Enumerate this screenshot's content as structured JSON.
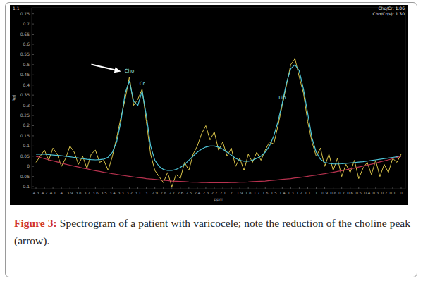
{
  "chart_data": {
    "type": "line",
    "corner_label": "1.1",
    "ratios": [
      "Cho/Cr: 1.06",
      "Cho/Cr(s): 1.30"
    ],
    "x_label": "ppm",
    "y_label": "Rel",
    "caption_label": "Figure 3:",
    "caption": "Spectrogram of a patient with varicocele; note the reduction of the choline peak (arrow).",
    "annotations": [
      {
        "text": "Cho",
        "x": 3.2,
        "y": 0.46
      },
      {
        "text": "Cr",
        "x": 3.05,
        "y": 0.4
      },
      {
        "text": "Lip",
        "x": 1.4,
        "y": 0.33
      }
    ],
    "xlim": [
      4.35,
      -0.05
    ],
    "ylim": [
      -0.11,
      0.78
    ],
    "xticks": [
      4.3,
      4.2,
      4.1,
      4,
      3.9,
      3.8,
      3.7,
      3.6,
      3.5,
      3.4,
      3.3,
      3.2,
      3.1,
      3,
      2.9,
      2.8,
      2.7,
      2.6,
      2.5,
      2.4,
      2.3,
      2.2,
      2.1,
      2,
      1.9,
      1.8,
      1.7,
      1.6,
      1.5,
      1.4,
      1.3,
      1.2,
      1.1,
      1,
      0.9,
      0.8,
      0.7,
      0.6,
      0.5,
      0.4,
      0.3,
      0.2,
      0.1,
      0
    ],
    "yticks": [
      0.75,
      0.7,
      0.65,
      0.6,
      0.55,
      0.5,
      0.45,
      0.4,
      0.35,
      0.3,
      0.25,
      0.2,
      0.15,
      0.1,
      0.05,
      0,
      -0.05,
      -0.1
    ],
    "grid": false,
    "x": [
      4.3,
      4.25,
      4.2,
      4.15,
      4.1,
      4.05,
      4.0,
      3.95,
      3.9,
      3.85,
      3.8,
      3.75,
      3.7,
      3.65,
      3.6,
      3.55,
      3.5,
      3.45,
      3.4,
      3.35,
      3.3,
      3.25,
      3.2,
      3.15,
      3.1,
      3.05,
      3.0,
      2.95,
      2.9,
      2.85,
      2.8,
      2.75,
      2.7,
      2.65,
      2.6,
      2.55,
      2.5,
      2.45,
      2.4,
      2.35,
      2.3,
      2.25,
      2.2,
      2.15,
      2.1,
      2.05,
      2.0,
      1.95,
      1.9,
      1.85,
      1.8,
      1.75,
      1.7,
      1.65,
      1.6,
      1.55,
      1.5,
      1.45,
      1.4,
      1.35,
      1.3,
      1.25,
      1.2,
      1.15,
      1.1,
      1.05,
      1.0,
      0.95,
      0.9,
      0.85,
      0.8,
      0.75,
      0.7,
      0.65,
      0.6,
      0.55,
      0.5,
      0.45,
      0.4,
      0.35,
      0.3,
      0.25,
      0.2,
      0.15,
      0.1,
      0.05,
      0.0
    ],
    "series": [
      {
        "color": "#d9c44a",
        "values": [
          0.02,
          0.05,
          0.08,
          0.03,
          0.09,
          0.06,
          0.0,
          0.04,
          0.1,
          0.07,
          0.01,
          0.05,
          -0.01,
          0.06,
          0.08,
          0.02,
          0.03,
          -0.02,
          0.05,
          0.14,
          0.24,
          0.33,
          0.44,
          0.3,
          0.33,
          0.38,
          0.22,
          0.06,
          -0.02,
          -0.05,
          -0.08,
          -0.03,
          -0.1,
          -0.04,
          -0.06,
          0.02,
          -0.02,
          0.06,
          0.1,
          0.16,
          0.2,
          0.13,
          0.17,
          0.08,
          0.12,
          0.05,
          0.09,
          0.0,
          0.04,
          -0.02,
          0.06,
          0.02,
          0.07,
          0.03,
          0.08,
          0.12,
          0.11,
          0.2,
          0.3,
          0.4,
          0.5,
          0.53,
          0.44,
          0.36,
          0.22,
          0.12,
          0.05,
          0.09,
          0.0,
          0.06,
          -0.02,
          0.04,
          -0.05,
          0.01,
          -0.03,
          0.03,
          -0.06,
          -0.01,
          0.02,
          -0.04,
          0.03,
          -0.05,
          0.01,
          -0.03,
          0.04,
          0.02,
          0.06
        ]
      },
      {
        "color": "#4fc6d9",
        "values": [
          0.06,
          0.06,
          0.06,
          0.058,
          0.056,
          0.054,
          0.052,
          0.05,
          0.047,
          0.044,
          0.041,
          0.038,
          0.035,
          0.033,
          0.032,
          0.033,
          0.036,
          0.045,
          0.07,
          0.12,
          0.22,
          0.36,
          0.42,
          0.32,
          0.3,
          0.37,
          0.25,
          0.1,
          0.03,
          0.0,
          -0.015,
          -0.02,
          -0.02,
          -0.015,
          -0.005,
          0.01,
          0.03,
          0.05,
          0.07,
          0.085,
          0.095,
          0.1,
          0.1,
          0.095,
          0.085,
          0.07,
          0.055,
          0.04,
          0.03,
          0.025,
          0.025,
          0.03,
          0.04,
          0.05,
          0.07,
          0.1,
          0.15,
          0.22,
          0.31,
          0.41,
          0.48,
          0.5,
          0.47,
          0.38,
          0.26,
          0.14,
          0.07,
          0.035,
          0.02,
          0.015,
          0.012,
          0.012,
          0.013,
          0.015,
          0.017,
          0.019,
          0.021,
          0.023,
          0.026,
          0.029,
          0.032,
          0.035,
          0.038,
          0.041,
          0.044,
          0.047,
          0.05
        ]
      },
      {
        "color": "#b8324f",
        "values": [
          0.05,
          0.044,
          0.038,
          0.032,
          0.027,
          0.022,
          0.016,
          0.011,
          0.006,
          0.001,
          -0.003,
          -0.008,
          -0.012,
          -0.017,
          -0.021,
          -0.025,
          -0.029,
          -0.032,
          -0.036,
          -0.039,
          -0.043,
          -0.046,
          -0.049,
          -0.052,
          -0.055,
          -0.057,
          -0.06,
          -0.062,
          -0.064,
          -0.066,
          -0.068,
          -0.07,
          -0.072,
          -0.073,
          -0.074,
          -0.075,
          -0.077,
          -0.078,
          -0.078,
          -0.079,
          -0.079,
          -0.08,
          -0.08,
          -0.08,
          -0.08,
          -0.08,
          -0.079,
          -0.079,
          -0.078,
          -0.078,
          -0.077,
          -0.075,
          -0.074,
          -0.073,
          -0.072,
          -0.07,
          -0.068,
          -0.066,
          -0.064,
          -0.062,
          -0.06,
          -0.057,
          -0.055,
          -0.052,
          -0.049,
          -0.046,
          -0.043,
          -0.039,
          -0.036,
          -0.032,
          -0.029,
          -0.025,
          -0.021,
          -0.017,
          -0.012,
          -0.008,
          -0.003,
          0.001,
          0.006,
          0.011,
          0.016,
          0.022,
          0.027,
          0.032,
          0.038,
          0.044,
          0.05
        ]
      }
    ]
  }
}
